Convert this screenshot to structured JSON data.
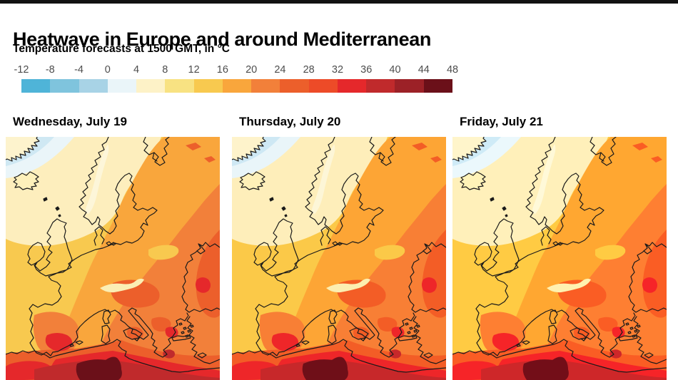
{
  "header": {
    "title": "Heatwave in Europe and around Mediterranean",
    "subtitle": "Temperature forecasts at 1500 GMT, in °C"
  },
  "scale": {
    "unit": "°C",
    "tick_labels": [
      "-12",
      "-8",
      "-4",
      "0",
      "4",
      "8",
      "12",
      "16",
      "20",
      "24",
      "28",
      "32",
      "36",
      "40",
      "44",
      "48"
    ],
    "colors": [
      "#4fb4d8",
      "#7fc4dd",
      "#a8d3e6",
      "#eaf5f9",
      "#fdf2c7",
      "#f8e282",
      "#f8c94f",
      "#f9a63c",
      "#f2803a",
      "#ec5f2b",
      "#ed4b28",
      "#e5282b",
      "#c02a2c",
      "#9c2127",
      "#6b1019"
    ]
  },
  "panels": [
    {
      "label": "Wednesday, July 19"
    },
    {
      "label": "Thursday, July 20"
    },
    {
      "label": "Friday, July 21"
    }
  ],
  "colors": {
    "top_bar": "#121212",
    "tick_text": "#4d4d4d",
    "coastline": "#1a1a1a",
    "background": "#ffffff"
  }
}
